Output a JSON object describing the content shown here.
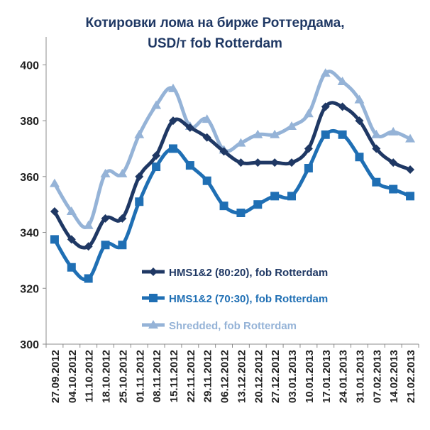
{
  "chart_data": {
    "type": "line",
    "title_lines": [
      "Котировки лома на бирже Роттердама,",
      "USD/т fob Rotterdam"
    ],
    "categories": [
      "27.09.2012",
      "04.10.2012",
      "11.10.2012",
      "18.10.2012",
      "25.10.2012",
      "01.11.2012",
      "08.11.2012",
      "15.11.2012",
      "22.11.2012",
      "29.11.2012",
      "06.12.2012",
      "13.12.2012",
      "20.12.2012",
      "27.12.2012",
      "03.01.2013",
      "10.01.2013",
      "17.01.2013",
      "24.01.2013",
      "31.01.2013",
      "07.02.2013",
      "14.02.2013",
      "21.02.2013"
    ],
    "ylim": [
      300,
      410
    ],
    "yticks": [
      300,
      320,
      340,
      360,
      380,
      400
    ],
    "grid": false,
    "series": [
      {
        "name": "HMS1&2 (80:20), fob Rotterdam",
        "color": "#1f3864",
        "marker": "diamond",
        "values": [
          347.5,
          337.5,
          335,
          345,
          345,
          360,
          367.5,
          380,
          377.5,
          374,
          369,
          365,
          365,
          365,
          365,
          370,
          385,
          385,
          380,
          370,
          365,
          362.5
        ]
      },
      {
        "name": "HMS1&2 (70:30), fob Rotterdam",
        "color": "#1f6fb4",
        "marker": "square",
        "values": [
          337.5,
          327.5,
          323.5,
          335.5,
          335.5,
          351,
          363.5,
          370,
          364,
          358.5,
          349.5,
          347,
          350,
          353,
          353,
          363,
          375,
          375,
          367,
          358,
          355.5,
          353
        ]
      },
      {
        "name": "Shredded, fob Rotterdam",
        "color": "#95b3d7",
        "marker": "triangle",
        "values": [
          357.5,
          347.5,
          342.5,
          361,
          361,
          375,
          385.5,
          391.5,
          378,
          380.5,
          369.5,
          372,
          375,
          375,
          378,
          382.5,
          397,
          394,
          387.5,
          375,
          376,
          373.5
        ]
      }
    ]
  }
}
